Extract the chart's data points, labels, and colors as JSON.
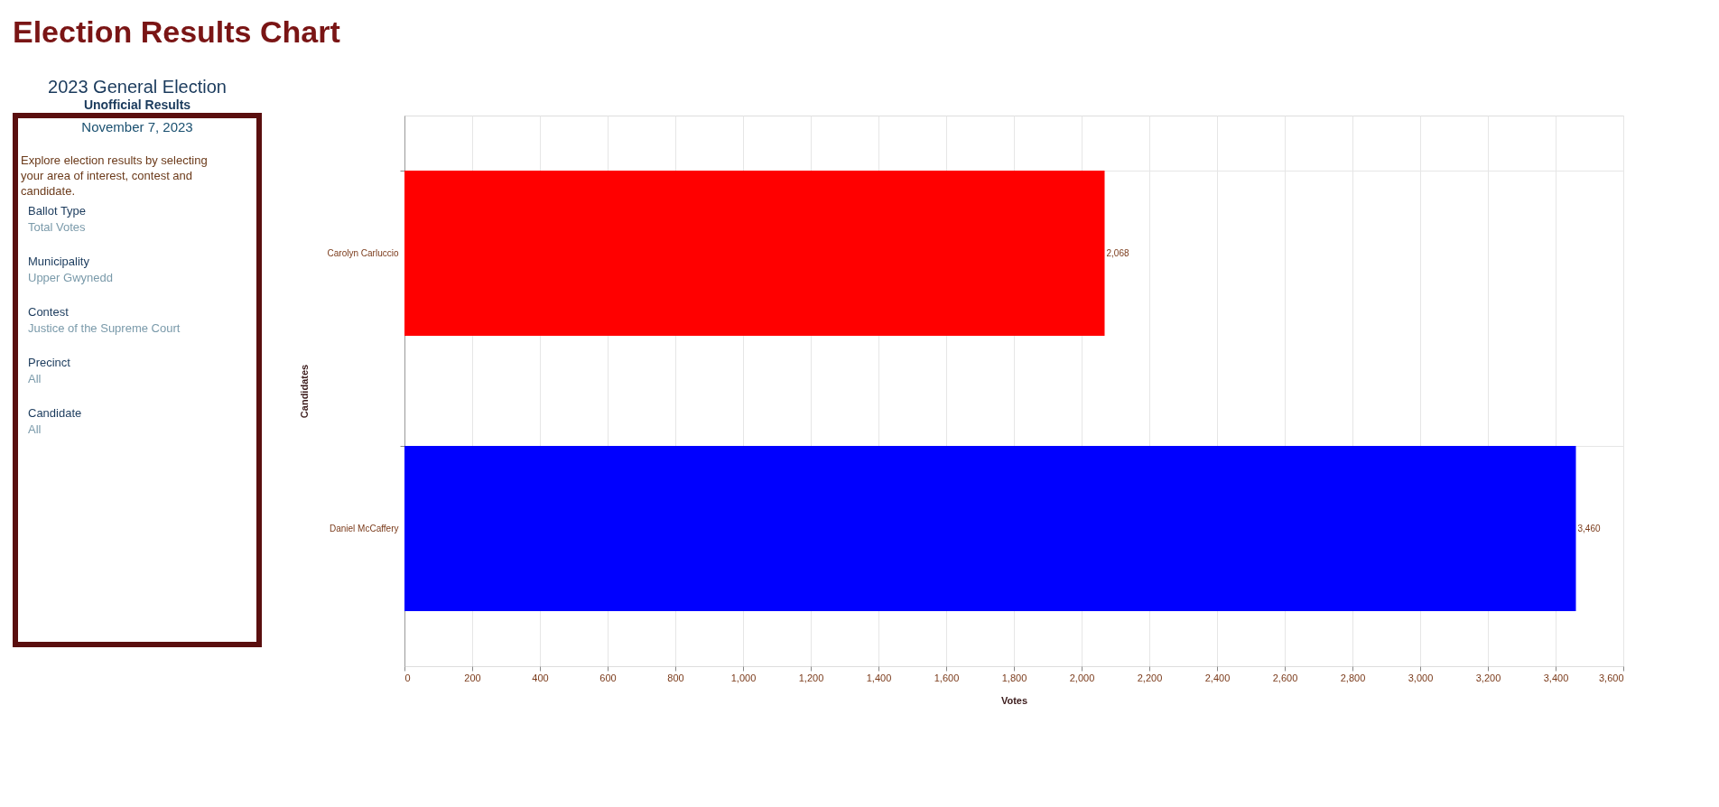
{
  "chart_data": [
    {
      "type": "other",
      "title": "2023 General Election",
      "subtitle": "Unofficial Results",
      "annotations": [
        "November 7, 2023",
        "Explore election results by selecting your area of interest, contest and candidate.",
        "Ballot Type",
        "Total Votes",
        "Municipality",
        "Upper Gwynedd",
        "Contest",
        "Justice of the Supreme Court",
        "Precinct",
        "All",
        "Candidate",
        "All"
      ]
    },
    {
      "type": "bar",
      "title": "Election Results Chart",
      "orientation": "horizontal",
      "categories": [
        "Carolyn Carluccio",
        "Daniel McCaffery"
      ],
      "values": [
        2068,
        3460
      ],
      "colors": [
        "#ff0000",
        "#0000ff"
      ],
      "value_labels": [
        "2,068",
        "3,460"
      ],
      "xlabel": "Votes",
      "ylabel": "Candidates",
      "xlim": [
        0,
        3600
      ],
      "xticks": [
        0,
        200,
        400,
        600,
        800,
        {
          "value": 1000,
          "label": "1,000"
        },
        {
          "value": 1200,
          "label": "1,200"
        },
        {
          "value": 1400,
          "label": "1,400"
        },
        {
          "value": 1600,
          "label": "1,600"
        },
        {
          "value": 1800,
          "label": "1,800"
        },
        {
          "value": 2000,
          "label": "2,000"
        },
        {
          "value": 2200,
          "label": "2,200"
        },
        {
          "value": 2400,
          "label": "2,400"
        },
        {
          "value": 2600,
          "label": "2,600"
        },
        {
          "value": 2800,
          "label": "2,800"
        },
        {
          "value": 3000,
          "label": "3,000"
        },
        {
          "value": 3200,
          "label": "3,200"
        },
        {
          "value": 3400,
          "label": "3,400"
        },
        {
          "value": 3600,
          "label": "3,600"
        }
      ],
      "grid": true
    }
  ]
}
